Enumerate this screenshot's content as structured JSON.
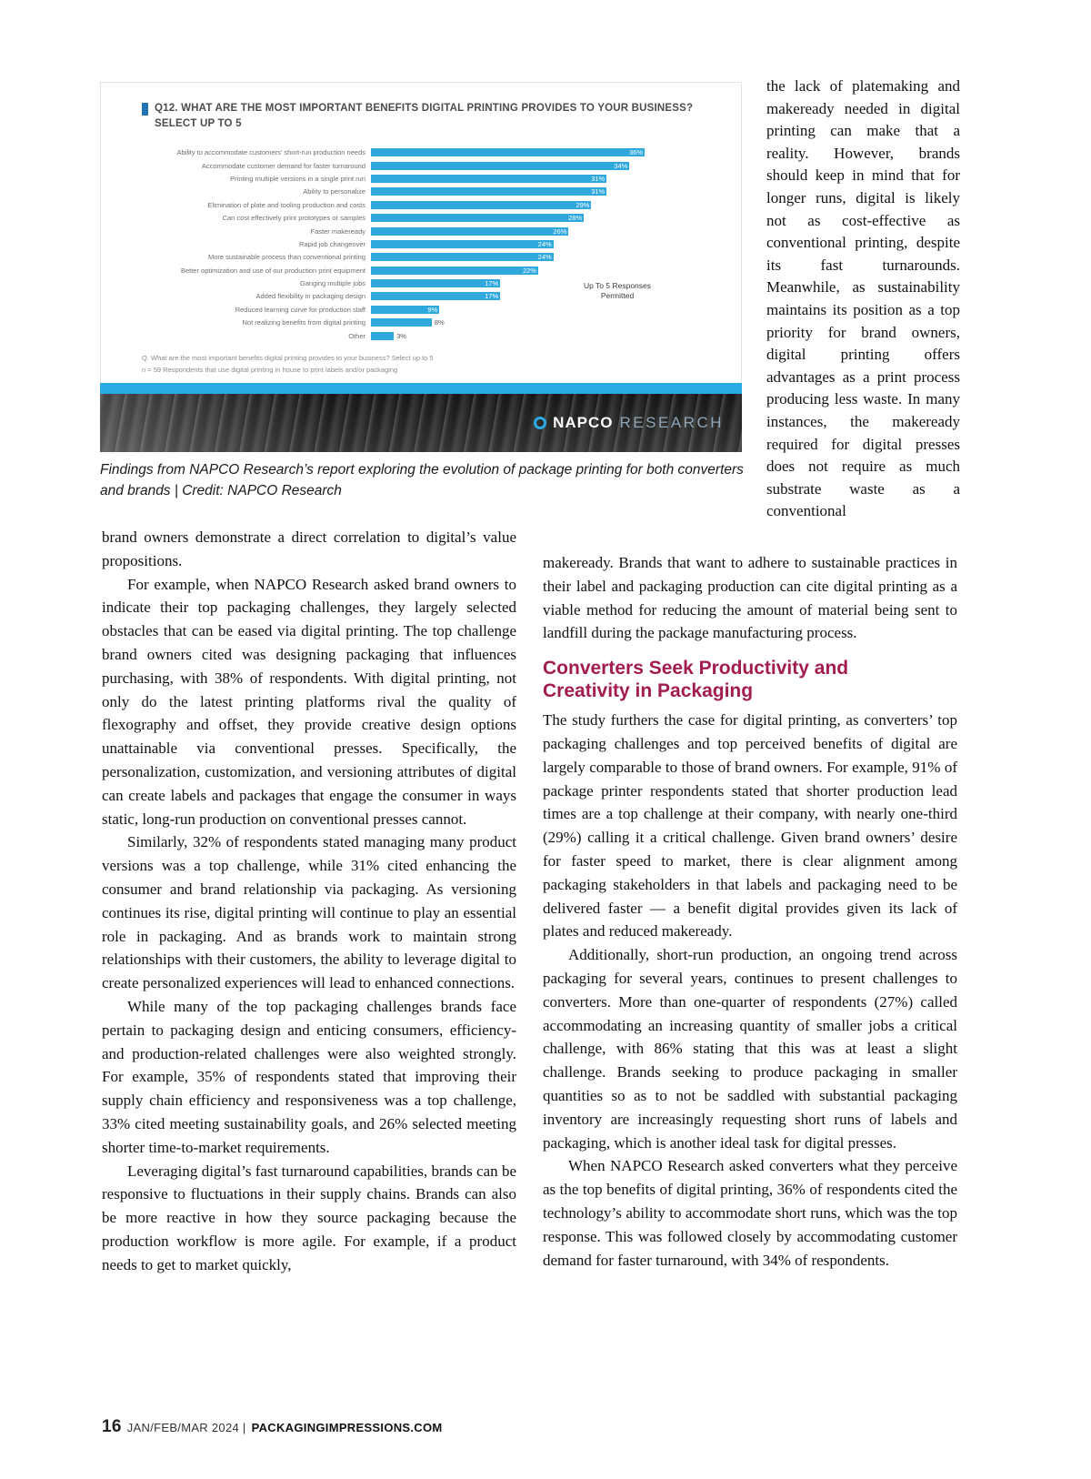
{
  "chart_data": {
    "type": "bar",
    "orientation": "horizontal",
    "title": "Q12. WHAT ARE THE MOST IMPORTANT BENEFITS DIGITAL PRINTING PROVIDES TO YOUR BUSINESS? SELECT UP TO 5",
    "categories": [
      "Ability to accommodate customers' short-run production needs",
      "Accommodate customer demand for faster turnaround",
      "Printing multiple versions in a single print run",
      "Ability to personalize",
      "Elimination of plate and tooling production and costs",
      "Can cost effectively print prototypes or samples",
      "Faster makeready",
      "Rapid job changeover",
      "More sustainable process than conventional printing",
      "Better optimization and use of our production print equipment",
      "Ganging multiple jobs",
      "Added flexibility in packaging design",
      "Reduced learning curve for production staff",
      "Not realizing benefits from digital printing",
      "Other"
    ],
    "values": [
      36,
      34,
      31,
      31,
      29,
      28,
      26,
      24,
      24,
      22,
      17,
      17,
      9,
      8,
      3
    ],
    "value_suffix": "%",
    "annotation": "Up To 5 Responses Permitted",
    "footnotes": [
      "Q. What are the most important benefits digital printing provides to your business? Select up to 5",
      "n = 59 Respondents that use digital printing in house to print labels and/or packaging"
    ],
    "bar_color": "#2fa8dd",
    "xlim": [
      0,
      40
    ],
    "grid": false,
    "legend": "none"
  },
  "figure": {
    "caption": "Findings from NAPCO Research’s report exploring the evolution of package printing for both converters and brands | Credit: NAPCO Research",
    "logo": {
      "name": "NAPCO",
      "suffix": "RESEARCH"
    }
  },
  "columns": {
    "right_narrow": {
      "paragraph": "the lack of platemaking and makeready needed in digital printing can make that a reality. However, brands should keep in mind that for longer runs, digital is likely not as cost-effective as conventional printing, despite its fast turnarounds. Meanwhile, as sustainability maintains its position as a top priority for brand owners, digital printing offers advantages as a print process producing less waste. In many instances, the makeready required for digital presses does not require as much substrate waste as a conventional"
    },
    "left": {
      "paragraphs": [
        "brand owners demonstrate a direct correlation to digital’s value propositions.",
        "For example, when NAPCO Research asked brand owners to indicate their top packaging challenges, they largely selected obstacles that can be eased via digital printing. The top challenge brand owners cited was designing packaging that influences purchasing, with 38% of respondents. With digital printing, not only do the latest printing platforms rival the quality of flexography and offset, they provide creative design options unattainable via conventional presses. Specifically, the personalization, customization, and versioning attributes of digital can create labels and packages that engage the consumer in ways static, long-run production on conventional presses cannot.",
        "Similarly, 32% of respondents stated managing many product versions was a top challenge, while 31% cited enhancing the consumer and brand relationship via packaging. As versioning continues its rise, digital printing will continue to play an essential role in packaging. And as brands work to maintain strong relationships with their customers, the ability to leverage digital to create personalized experiences will lead to enhanced connections.",
        "While many of the top packaging challenges brands face pertain to packaging design and enticing consumers, efficiency- and production-related challenges were also weighted strongly. For example, 35% of respondents stated that improving their supply chain efficiency and responsiveness was a top challenge, 33% cited meeting sustainability goals, and 26% selected meeting shorter time-to-market requirements.",
        "Leveraging digital’s fast turnaround capabilities, brands can be responsive to fluctuations in their supply chains. Brands can also be more reactive in how they source packaging because the production workflow is more agile. For example, if a product needs to get to market quickly,"
      ]
    },
    "right": {
      "continuation": "makeready. Brands that want to adhere to sustainable practices in their label and packaging production can cite digital printing as a viable method for reducing the amount of material being sent to landfill during the package manufacturing process.",
      "heading": "Converters Seek Productivity and Creativity in Packaging",
      "paragraphs": [
        "The study furthers the case for digital printing, as converters’ top packaging challenges and top perceived benefits of digital are largely comparable to those of brand owners. For example, 91% of package printer respondents stated that shorter production lead times are a top challenge at their company, with nearly one-third (29%) calling it a critical challenge. Given brand owners’ desire for faster speed to market, there is clear alignment among packaging stakeholders in that labels and packaging need to be delivered faster — a benefit digital provides given its lack of plates and reduced makeready.",
        "Additionally, short-run production, an ongoing trend across packaging for several years, continues to present challenges to converters. More than one-quarter of respondents (27%) called accommodating an increasing quantity of smaller jobs a critical challenge, with 86% stating that this was at least a slight challenge. Brands seeking to produce packaging in smaller quantities so as to not be saddled with substantial packaging inventory are increasingly requesting short runs of labels and packaging, which is another ideal task for digital presses.",
        "When NAPCO Research asked converters what they perceive as the top benefits of digital printing, 36% of respondents cited the technology’s ability to accommodate short runs, which was the top response. This was followed closely by accommodating customer demand for faster turnaround, with 34% of respondents."
      ]
    }
  },
  "footer": {
    "page_number": "16",
    "issue": "JAN/FEB/MAR 2024 |",
    "site": "PACKAGINGIMPRESSIONS.COM"
  }
}
